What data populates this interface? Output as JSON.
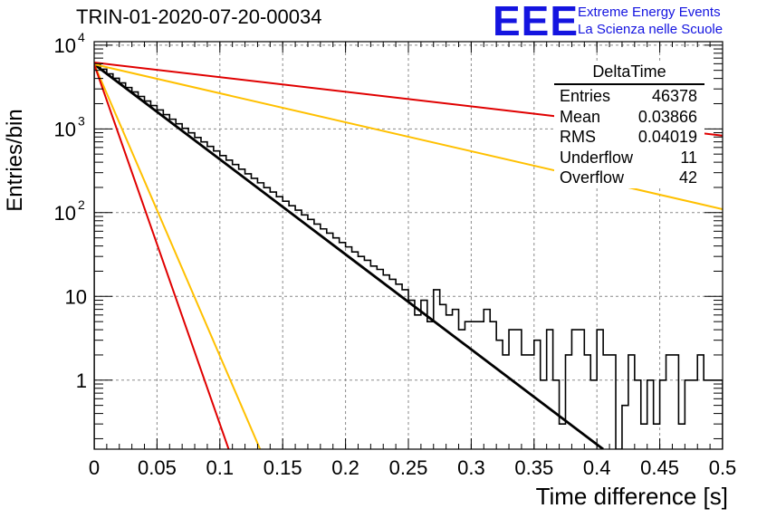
{
  "header": {
    "run_title": "TRIN-01-2020-07-20-00034",
    "logo_text": "EEE",
    "project_line1": "Extreme Energy Events",
    "project_line2": "La Scienza nelle Scuole",
    "logo_color": "#1414e0"
  },
  "stats_box": {
    "title": "DeltaTime",
    "rows": [
      {
        "label": "Entries",
        "value": "46378"
      },
      {
        "label": "Mean",
        "value": "0.03866"
      },
      {
        "label": "RMS",
        "value": "0.04019"
      },
      {
        "label": "Underflow",
        "value": "11"
      },
      {
        "label": "Overflow",
        "value": "42"
      }
    ]
  },
  "chart_data": {
    "type": "line",
    "xlabel": "Time difference [s]",
    "ylabel": "Entries/bin",
    "xlim": [
      0,
      0.5
    ],
    "ylim": [
      0.15,
      11000
    ],
    "yscale": "log",
    "grid": true,
    "x_ticks": [
      "0",
      "0.05",
      "0.1",
      "0.15",
      "0.2",
      "0.25",
      "0.3",
      "0.35",
      "0.4",
      "0.45",
      "0.5"
    ],
    "y_ticks": [
      {
        "value": 1,
        "label": "1"
      },
      {
        "value": 10,
        "label": "10"
      },
      {
        "value": 100,
        "label": "10",
        "sup": "2"
      },
      {
        "value": 1000,
        "label": "10",
        "sup": "3"
      },
      {
        "value": 10000,
        "label": "10",
        "sup": "4"
      }
    ],
    "histogram": {
      "color": "#000000",
      "bin_width": 0.005,
      "coarse_region_start": 0.25,
      "counts_first_50": [
        5800,
        5150,
        4540,
        4020,
        3540,
        3120,
        2760,
        2440,
        2150,
        1900,
        1680,
        1480,
        1305,
        1150,
        1015,
        898,
        790,
        700,
        617,
        545,
        480,
        424,
        375,
        330,
        291,
        257,
        227,
        199,
        176,
        155,
        137,
        121,
        107,
        94,
        83,
        73,
        64,
        57,
        50,
        44,
        39,
        34,
        30,
        27,
        23,
        21,
        18,
        16,
        14,
        12
      ],
      "counts_last_50": [
        9,
        6,
        9,
        5,
        12,
        8,
        6,
        7,
        4,
        5,
        5,
        5,
        7,
        5,
        3,
        2,
        4,
        4,
        2,
        2,
        3,
        1,
        4,
        1,
        0.3,
        2,
        4,
        4,
        2,
        1,
        4,
        2,
        2,
        0,
        0.5,
        2,
        1,
        0.3,
        1,
        0.3,
        1,
        2,
        2,
        0.3,
        1,
        1,
        2,
        1,
        1,
        1
      ]
    },
    "series": [
      {
        "color": "#000000",
        "x": [
          0,
          0.405
        ],
        "y": [
          5900,
          0.15
        ]
      },
      {
        "color": "#ffc000",
        "x": [
          0,
          0.5
        ],
        "y": [
          5900,
          110
        ]
      },
      {
        "color": "#ffc000",
        "x": [
          0,
          0.132
        ],
        "y": [
          5900,
          0.15
        ]
      },
      {
        "color": "#e00000",
        "x": [
          0,
          0.5
        ],
        "y": [
          6200,
          830
        ]
      },
      {
        "color": "#e00000",
        "x": [
          0,
          0.107
        ],
        "y": [
          5900,
          0.15
        ]
      }
    ]
  }
}
